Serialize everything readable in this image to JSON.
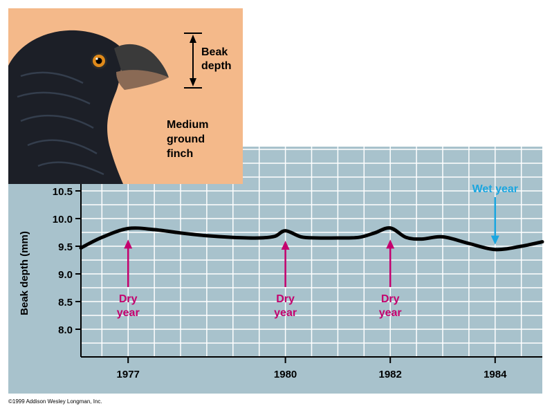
{
  "illustration": {
    "subject": "Medium\nground\nfinch",
    "dimension_label": "Beak\ndepth",
    "colors": {
      "background": "#f4b98a",
      "feather": "#1c1f27",
      "beak": "#3a3a3a",
      "eye": "#e08a1a"
    }
  },
  "chart_data": {
    "type": "line",
    "title": "",
    "xlabel": "",
    "ylabel": "Beak depth (mm)",
    "xlim": [
      1976.1,
      1984.9
    ],
    "ylim": [
      7.5,
      11.3
    ],
    "x_ticks": [
      1977,
      1980,
      1982,
      1984
    ],
    "x_tick_labels": [
      "1977",
      "1980",
      "1982",
      "1984"
    ],
    "y_ticks": [
      8.0,
      8.5,
      9.0,
      9.5,
      10.0,
      10.5
    ],
    "y_tick_labels": [
      "8.0",
      "8.5",
      "9.0",
      "9.5",
      "10.0",
      "10.5"
    ],
    "grid": true,
    "series": [
      {
        "name": "",
        "color": "#000000",
        "x": [
          1976.1,
          1976.5,
          1977.0,
          1977.5,
          1978.0,
          1978.5,
          1979.0,
          1979.5,
          1979.8,
          1980.0,
          1980.3,
          1980.6,
          1981.0,
          1981.4,
          1981.7,
          1982.0,
          1982.3,
          1982.6,
          1983.0,
          1983.5,
          1984.0,
          1984.5,
          1984.9
        ],
        "y": [
          9.47,
          9.66,
          9.82,
          9.8,
          9.74,
          9.69,
          9.66,
          9.65,
          9.68,
          9.78,
          9.67,
          9.65,
          9.65,
          9.66,
          9.74,
          9.83,
          9.66,
          9.63,
          9.67,
          9.55,
          9.44,
          9.5,
          9.58
        ]
      }
    ],
    "annotations": [
      {
        "text": "Dry\nyear",
        "x": 1977,
        "y_point": 9.62,
        "kind": "dry",
        "color": "#c4006e"
      },
      {
        "text": "Dry\nyear",
        "x": 1980,
        "y_point": 9.6,
        "kind": "dry",
        "color": "#c4006e"
      },
      {
        "text": "Dry\nyear",
        "x": 1982,
        "y_point": 9.62,
        "kind": "dry",
        "color": "#c4006e"
      },
      {
        "text": "Wet year",
        "x": 1984,
        "y_point": 9.53,
        "kind": "wet",
        "color": "#1aa6e0"
      }
    ],
    "colors": {
      "plot_bg": "#a8c2cc",
      "grid": "#ffffff"
    }
  },
  "credit": "©1999 Addison Wesley Longman, Inc."
}
